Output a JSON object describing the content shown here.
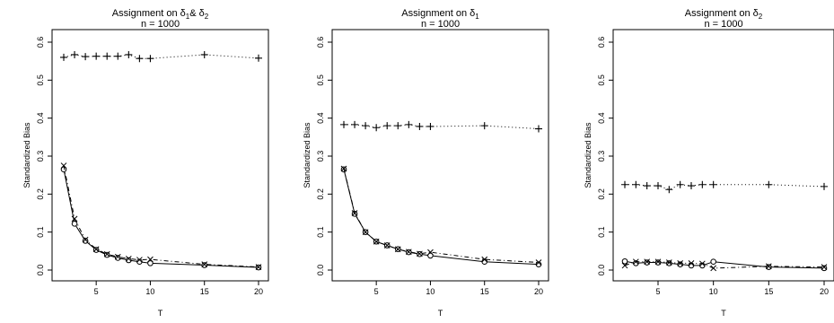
{
  "chart_data": [
    {
      "type": "line",
      "title_main": "Assignment on δ",
      "title_sub1": "1",
      "title_mid": "& δ",
      "title_sub2": "2",
      "subtitle": "n = 1000",
      "xlabel": "T",
      "ylabel": "Standardized Bias",
      "xlim": [
        2,
        20
      ],
      "ylim": [
        0,
        0.6
      ],
      "xticks": [
        "5",
        "10",
        "15",
        "20"
      ],
      "yticks": [
        "0.0",
        "0.1",
        "0.2",
        "0.3",
        "0.4",
        "0.5",
        "0.6"
      ],
      "x": [
        2,
        3,
        4,
        5,
        6,
        7,
        8,
        9,
        10,
        15,
        20
      ],
      "series": [
        {
          "marker": "plus",
          "line": "dotted",
          "values": [
            0.56,
            0.567,
            0.562,
            0.563,
            0.563,
            0.563,
            0.567,
            0.557,
            0.557,
            0.567,
            0.558
          ]
        },
        {
          "marker": "circle",
          "line": "solid",
          "values": [
            0.265,
            0.122,
            0.077,
            0.053,
            0.04,
            0.032,
            0.026,
            0.022,
            0.018,
            0.013,
            0.007
          ]
        },
        {
          "marker": "cross",
          "line": "dashdot",
          "values": [
            0.275,
            0.135,
            0.08,
            0.055,
            0.042,
            0.035,
            0.03,
            0.027,
            0.028,
            0.015,
            0.008
          ]
        }
      ]
    },
    {
      "type": "line",
      "title_main": "Assignment on δ",
      "title_sub1": "1",
      "title_mid": "",
      "title_sub2": "",
      "subtitle": "n = 1000",
      "xlabel": "T",
      "ylabel": "Standardized Bias",
      "xlim": [
        2,
        20
      ],
      "ylim": [
        0,
        0.6
      ],
      "xticks": [
        "5",
        "10",
        "15",
        "20"
      ],
      "yticks": [
        "0.0",
        "0.1",
        "0.2",
        "0.3",
        "0.4",
        "0.5",
        "0.6"
      ],
      "x": [
        2,
        3,
        4,
        5,
        6,
        7,
        8,
        9,
        10,
        15,
        20
      ],
      "series": [
        {
          "marker": "plus",
          "line": "dotted",
          "values": [
            0.383,
            0.383,
            0.38,
            0.375,
            0.38,
            0.38,
            0.383,
            0.378,
            0.378,
            0.38,
            0.372
          ]
        },
        {
          "marker": "circle",
          "line": "solid",
          "values": [
            0.265,
            0.148,
            0.1,
            0.075,
            0.065,
            0.055,
            0.047,
            0.042,
            0.038,
            0.022,
            0.015
          ]
        },
        {
          "marker": "cross",
          "line": "dashdot",
          "values": [
            0.267,
            0.15,
            0.1,
            0.075,
            0.065,
            0.055,
            0.048,
            0.043,
            0.047,
            0.028,
            0.02
          ]
        }
      ]
    },
    {
      "type": "line",
      "title_main": "Assignment on δ",
      "title_sub1": "2",
      "title_mid": "",
      "title_sub2": "",
      "subtitle": "n = 1000",
      "xlabel": "T",
      "ylabel": "Standardized Bias",
      "xlim": [
        2,
        20
      ],
      "ylim": [
        0,
        0.6
      ],
      "xticks": [
        "5",
        "10",
        "15",
        "20"
      ],
      "yticks": [
        "0.0",
        "0.1",
        "0.2",
        "0.3",
        "0.4",
        "0.5",
        "0.6"
      ],
      "x": [
        2,
        3,
        4,
        5,
        6,
        7,
        8,
        9,
        10,
        15,
        20
      ],
      "series": [
        {
          "marker": "plus",
          "line": "dotted",
          "values": [
            0.225,
            0.225,
            0.222,
            0.222,
            0.212,
            0.225,
            0.222,
            0.225,
            0.225,
            0.225,
            0.22
          ]
        },
        {
          "marker": "circle",
          "line": "solid",
          "values": [
            0.023,
            0.018,
            0.02,
            0.02,
            0.018,
            0.015,
            0.012,
            0.012,
            0.022,
            0.008,
            0.005
          ]
        },
        {
          "marker": "cross",
          "line": "dashdot",
          "values": [
            0.012,
            0.022,
            0.022,
            0.022,
            0.02,
            0.018,
            0.018,
            0.017,
            0.005,
            0.01,
            0.008
          ]
        }
      ]
    }
  ]
}
